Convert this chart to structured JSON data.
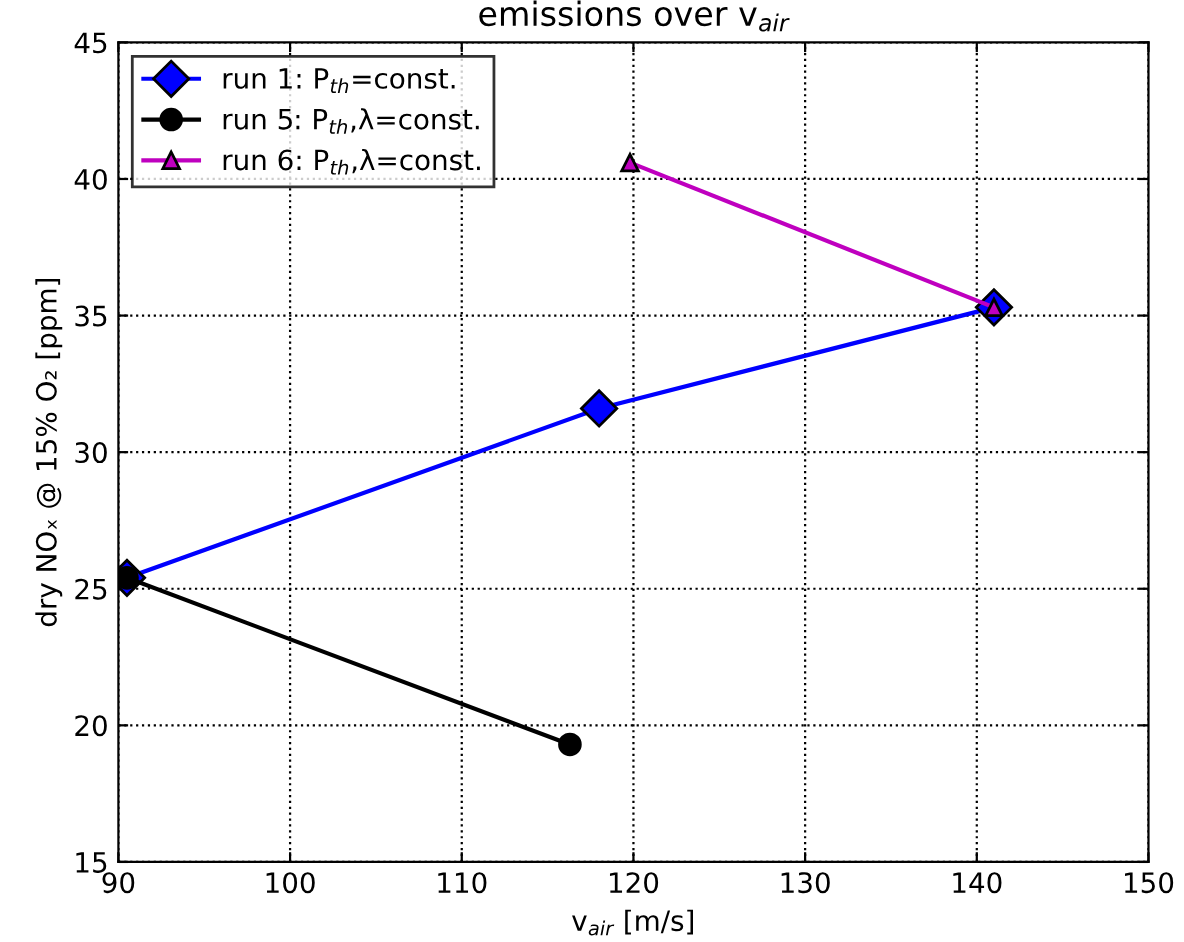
{
  "chart_data": {
    "type": "line",
    "title": "emissions over v$_{air}$",
    "xlabel": "v$_{air}$ [m/s]",
    "ylabel": "dry NOₓ @ 15% O₂ [ppm]",
    "series": [
      {
        "name": "run 1: P$_{th}$=const.",
        "color": "#0000ff",
        "marker": "diamond",
        "x": [
          90.5,
          118,
          141
        ],
        "values": [
          25.4,
          31.6,
          35.3
        ]
      },
      {
        "name": "run 5: P$_{th}$,λ=const.",
        "color": "#000000",
        "marker": "circle",
        "x": [
          90.5,
          116.3
        ],
        "values": [
          25.4,
          19.3
        ]
      },
      {
        "name": "run 6: P$_{th}$,λ=const.",
        "color": "#bf00bf",
        "marker": "triangle",
        "x": [
          119.8,
          141
        ],
        "values": [
          40.6,
          35.3
        ]
      }
    ],
    "xlim": [
      90,
      150
    ],
    "xticks": [
      90,
      100,
      110,
      120,
      130,
      140,
      150
    ],
    "ylim": [
      15,
      45
    ],
    "yticks": [
      15,
      20,
      25,
      30,
      35,
      40,
      45
    ],
    "grid": true,
    "legend": "top left",
    "line_style": "solid"
  }
}
